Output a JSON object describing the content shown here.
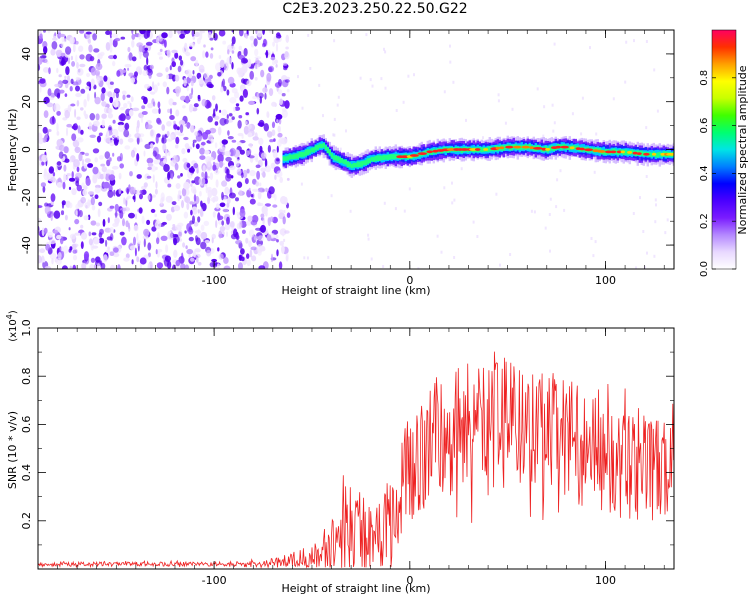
{
  "title": "C2E3.2023.250.22.50.G22",
  "colorbar": {
    "label": "Normalized spectral amplitude",
    "ticks": [
      "0.0",
      "0.2",
      "0.4",
      "0.6",
      "0.8"
    ],
    "colors": [
      "#ffffff",
      "#e8d8ff",
      "#b488ff",
      "#7a1cff",
      "#4a00ff",
      "#0000ff",
      "#0080ff",
      "#00e5e5",
      "#00ff70",
      "#40ff00",
      "#c8ff00",
      "#ffff00",
      "#ffa000",
      "#ff3000",
      "#ff0060"
    ]
  },
  "chart_data": [
    {
      "type": "heatmap",
      "xlabel": "Height of straight line (km)",
      "ylabel": "Frequency (Hz)",
      "xlim": [
        -190,
        135
      ],
      "ylim": [
        -50,
        50
      ],
      "xticks": [
        "-100",
        "0",
        "100"
      ],
      "yticks": [
        "40",
        "20",
        "0",
        "-20",
        "-40"
      ],
      "noise_region_x": [
        -190,
        -65
      ],
      "signal_trace": {
        "x": [
          -65,
          -55,
          -45,
          -40,
          -35,
          -30,
          -25,
          -20,
          -10,
          0,
          10,
          20,
          30,
          40,
          50,
          60,
          70,
          75,
          80,
          90,
          100,
          110,
          120,
          130,
          135
        ],
        "frequency": [
          -4,
          -2,
          2,
          -3,
          -5,
          -7,
          -6,
          -4,
          -3,
          -3,
          -1,
          0,
          0,
          0,
          1,
          1,
          0,
          1,
          1,
          0,
          -1,
          -1,
          -2,
          -2,
          -2
        ]
      }
    },
    {
      "type": "line",
      "xlabel": "Height of straight line (km)",
      "ylabel": "SNR (10 * v/v)",
      "yscale_label": "(x10",
      "yscale_exp": "4",
      "yscale_close": ")",
      "xlim": [
        -190,
        135
      ],
      "ylim": [
        0,
        1.0
      ],
      "xticks": [
        "-100",
        "0",
        "100"
      ],
      "yticks": [
        "0.2",
        "0.4",
        "0.6",
        "0.8",
        "1.0"
      ],
      "color": "#ee2222",
      "envelope": {
        "x": [
          -190,
          -100,
          -75,
          -65,
          -55,
          -45,
          -35,
          -30,
          -25,
          -20,
          -15,
          -10,
          -5,
          0,
          10,
          20,
          30,
          40,
          50,
          60,
          70,
          80,
          90,
          100,
          110,
          120,
          130,
          135
        ],
        "base": [
          0.02,
          0.02,
          0.02,
          0.03,
          0.04,
          0.06,
          0.1,
          0.14,
          0.12,
          0.16,
          0.2,
          0.22,
          0.3,
          0.42,
          0.52,
          0.56,
          0.6,
          0.62,
          0.6,
          0.58,
          0.56,
          0.55,
          0.5,
          0.45,
          0.42,
          0.42,
          0.4,
          0.4
        ],
        "amplitude": [
          0.01,
          0.01,
          0.015,
          0.03,
          0.05,
          0.08,
          0.2,
          0.25,
          0.25,
          0.2,
          0.2,
          0.2,
          0.25,
          0.25,
          0.3,
          0.3,
          0.32,
          0.35,
          0.3,
          0.28,
          0.3,
          0.28,
          0.28,
          0.25,
          0.25,
          0.25,
          0.25,
          0.25
        ]
      }
    }
  ]
}
